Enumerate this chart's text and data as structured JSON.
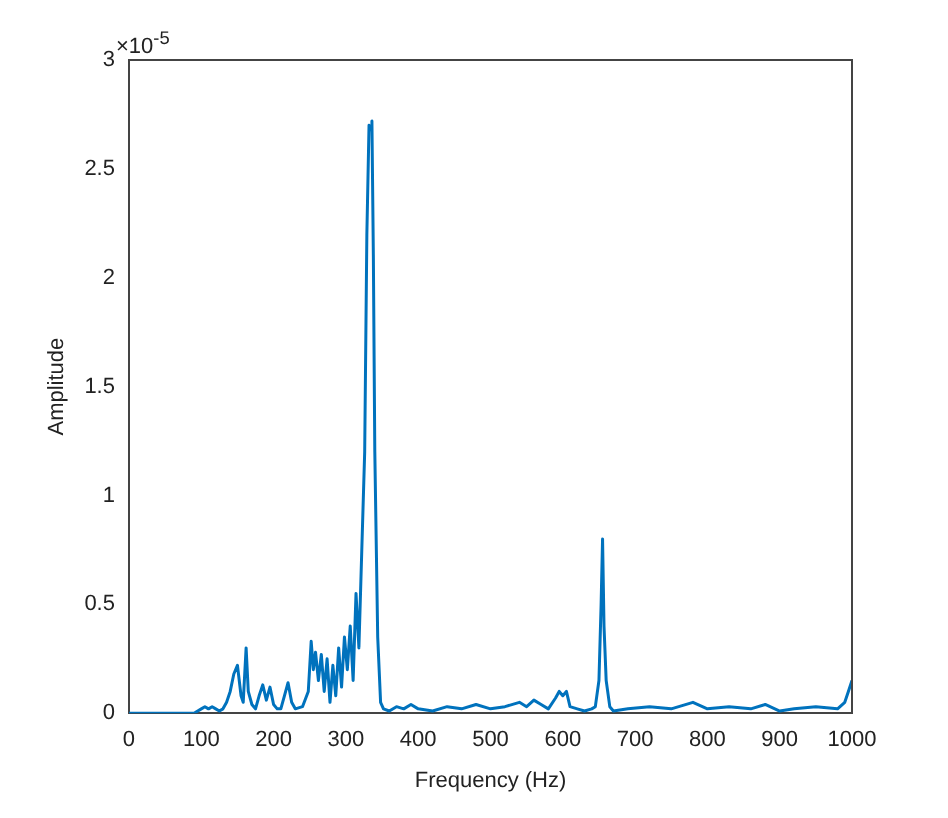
{
  "chart_data": {
    "type": "line",
    "xlabel": "Frequency (Hz)",
    "ylabel": "Amplitude",
    "annotations": [
      "×10$^{-5}$"
    ],
    "x": [
      0,
      90,
      100,
      105,
      110,
      115,
      120,
      125,
      130,
      135,
      140,
      145,
      150,
      155,
      158,
      162,
      165,
      170,
      175,
      180,
      185,
      190,
      195,
      200,
      205,
      210,
      215,
      220,
      225,
      230,
      240,
      248,
      252,
      255,
      258,
      262,
      266,
      270,
      274,
      278,
      282,
      286,
      290,
      294,
      298,
      302,
      306,
      310,
      314,
      318,
      322,
      326,
      329,
      332,
      334,
      336,
      338,
      340,
      344,
      348,
      352,
      360,
      370,
      380,
      390,
      400,
      420,
      440,
      460,
      480,
      500,
      520,
      540,
      550,
      560,
      570,
      580,
      590,
      595,
      600,
      605,
      610,
      620,
      630,
      640,
      645,
      650,
      653,
      655,
      657,
      660,
      665,
      670,
      690,
      720,
      750,
      780,
      800,
      830,
      860,
      880,
      900,
      920,
      950,
      980,
      990,
      995,
      1000
    ],
    "series": [
      {
        "color": "#0072bd",
        "values": [
          0,
          0,
          0.02,
          0.03,
          0.02,
          0.03,
          0.02,
          0.01,
          0.02,
          0.05,
          0.1,
          0.18,
          0.22,
          0.08,
          0.05,
          0.3,
          0.1,
          0.04,
          0.02,
          0.08,
          0.13,
          0.06,
          0.12,
          0.04,
          0.02,
          0.02,
          0.08,
          0.14,
          0.05,
          0.02,
          0.03,
          0.1,
          0.33,
          0.2,
          0.28,
          0.15,
          0.27,
          0.1,
          0.25,
          0.05,
          0.22,
          0.08,
          0.3,
          0.12,
          0.35,
          0.2,
          0.4,
          0.15,
          0.55,
          0.3,
          0.75,
          1.2,
          2.2,
          2.7,
          2.68,
          2.72,
          2.1,
          1.2,
          0.35,
          0.05,
          0.02,
          0.01,
          0.03,
          0.02,
          0.04,
          0.02,
          0.01,
          0.03,
          0.02,
          0.04,
          0.02,
          0.03,
          0.05,
          0.03,
          0.06,
          0.04,
          0.02,
          0.07,
          0.1,
          0.08,
          0.1,
          0.03,
          0.02,
          0.01,
          0.02,
          0.03,
          0.15,
          0.5,
          0.8,
          0.4,
          0.15,
          0.03,
          0.01,
          0.02,
          0.03,
          0.02,
          0.05,
          0.02,
          0.03,
          0.02,
          0.04,
          0.01,
          0.02,
          0.03,
          0.02,
          0.05,
          0.1,
          0.15
        ]
      }
    ],
    "xlim": [
      0,
      1000
    ],
    "xticks": [
      0,
      100,
      200,
      300,
      400,
      500,
      600,
      700,
      800,
      900,
      1000
    ],
    "ylim": [
      0,
      3
    ],
    "yticks": [
      0,
      0.5,
      1,
      1.5,
      2,
      2.5,
      3
    ],
    "grid": false,
    "legend": false,
    "marker": "none",
    "line_style": "solid"
  }
}
